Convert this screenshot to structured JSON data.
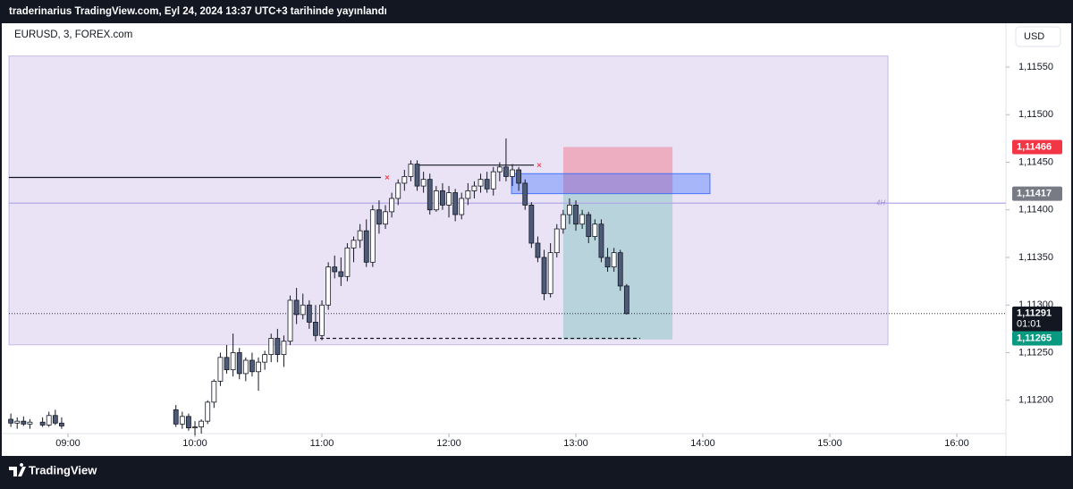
{
  "header": {
    "text": "traderinarius TradingView.com, Eyl 24, 2024 13:37 UTC+3 tarihinde yayınlandı"
  },
  "footer": {
    "brand": "TradingView"
  },
  "chart_data": {
    "type": "candlestick",
    "symbol": "EURUSD, 3, FOREX.com",
    "currency": "USD",
    "up_color": "#ffffff",
    "down_color": "#4e5b78",
    "outline_color": "#131722",
    "xlim": [
      8.535,
      16.387
    ],
    "ylim": [
      1.11165,
      1.11596
    ],
    "xticks": [
      {
        "value": 9,
        "label": "09:00"
      },
      {
        "value": 10,
        "label": "10:00"
      },
      {
        "value": 11,
        "label": "11:00"
      },
      {
        "value": 12,
        "label": "12:00"
      },
      {
        "value": 13,
        "label": "13:00"
      },
      {
        "value": 14,
        "label": "14:00"
      },
      {
        "value": 15,
        "label": "15:00"
      },
      {
        "value": 16,
        "label": "16:00"
      }
    ],
    "yticks": [
      {
        "value": 1.1155,
        "label": "1,11550"
      },
      {
        "value": 1.115,
        "label": "1,11500"
      },
      {
        "value": 1.1145,
        "label": "1,11450"
      },
      {
        "value": 1.114,
        "label": "1,11400"
      },
      {
        "value": 1.1135,
        "label": "1,11350"
      },
      {
        "value": 1.113,
        "label": "1,11300"
      },
      {
        "value": 1.1125,
        "label": "1,11250"
      },
      {
        "value": 1.112,
        "label": "1,11200"
      }
    ],
    "x": [
      8.55,
      8.6,
      8.65,
      8.7,
      8.8,
      8.85,
      8.9,
      8.95,
      9.85,
      9.9,
      9.95,
      10.0,
      10.05,
      10.1,
      10.15,
      10.2,
      10.25,
      10.3,
      10.35,
      10.4,
      10.45,
      10.5,
      10.55,
      10.6,
      10.65,
      10.7,
      10.75,
      10.8,
      10.85,
      10.9,
      10.95,
      11.0,
      11.05,
      11.1,
      11.15,
      11.2,
      11.25,
      11.3,
      11.35,
      11.4,
      11.45,
      11.5,
      11.55,
      11.6,
      11.65,
      11.7,
      11.75,
      11.8,
      11.85,
      11.9,
      11.95,
      12.0,
      12.05,
      12.1,
      12.15,
      12.2,
      12.25,
      12.3,
      12.35,
      12.4,
      12.45,
      12.5,
      12.55,
      12.6,
      12.65,
      12.7,
      12.75,
      12.8,
      12.85,
      12.9,
      12.95,
      13.0,
      13.05,
      13.1,
      13.15,
      13.2,
      13.25,
      13.3,
      13.35,
      13.4
    ],
    "open": [
      1.1118,
      1.11176,
      1.11178,
      1.11175,
      1.11177,
      1.11174,
      1.11184,
      1.11176,
      1.1119,
      1.11175,
      1.11183,
      1.11171,
      1.11172,
      1.11178,
      1.11198,
      1.1122,
      1.11245,
      1.11232,
      1.1125,
      1.11228,
      1.11242,
      1.1123,
      1.1124,
      1.11248,
      1.11265,
      1.11248,
      1.11262,
      1.11305,
      1.1129,
      1.113,
      1.11282,
      1.11268,
      1.113,
      1.1134,
      1.11335,
      1.1133,
      1.1136,
      1.11368,
      1.11378,
      1.11345,
      1.114,
      1.11385,
      1.11398,
      1.11412,
      1.11428,
      1.11435,
      1.11448,
      1.11425,
      1.11432,
      1.114,
      1.1142,
      1.11405,
      1.11418,
      1.11395,
      1.11412,
      1.1142,
      1.11425,
      1.11432,
      1.11422,
      1.1144,
      1.11445,
      1.11435,
      1.11442,
      1.11428,
      1.11405,
      1.11365,
      1.1135,
      1.11312,
      1.11355,
      1.1138,
      1.11395,
      1.11405,
      1.11385,
      1.11395,
      1.11372,
      1.11385,
      1.1135,
      1.1134,
      1.11355,
      1.1132
    ],
    "high": [
      1.11186,
      1.11182,
      1.11183,
      1.1118,
      1.11182,
      1.11188,
      1.1119,
      1.11182,
      1.11195,
      1.11188,
      1.11186,
      1.11178,
      1.1118,
      1.112,
      1.11222,
      1.1125,
      1.11258,
      1.1127,
      1.11255,
      1.11245,
      1.1125,
      1.11245,
      1.11252,
      1.1127,
      1.11275,
      1.11268,
      1.1131,
      1.11318,
      1.11312,
      1.11305,
      1.113,
      1.11305,
      1.11345,
      1.11352,
      1.1135,
      1.11365,
      1.11372,
      1.11385,
      1.1139,
      1.11405,
      1.1141,
      1.11405,
      1.11418,
      1.11432,
      1.11442,
      1.11452,
      1.11452,
      1.1144,
      1.11438,
      1.11425,
      1.11428,
      1.11425,
      1.11422,
      1.11418,
      1.11428,
      1.1143,
      1.11438,
      1.1144,
      1.11445,
      1.1145,
      1.11475,
      1.11448,
      1.11445,
      1.11432,
      1.11408,
      1.11372,
      1.11358,
      1.11365,
      1.11385,
      1.114,
      1.11412,
      1.1141,
      1.114,
      1.11398,
      1.1139,
      1.1139,
      1.1136,
      1.1136,
      1.11358,
      1.11322
    ],
    "low": [
      1.11172,
      1.1117,
      1.11173,
      1.1117,
      1.11172,
      1.11172,
      1.11174,
      1.1117,
      1.11172,
      1.1117,
      1.11168,
      1.11163,
      1.11165,
      1.11175,
      1.11192,
      1.11215,
      1.11228,
      1.11225,
      1.11222,
      1.1122,
      1.11225,
      1.1121,
      1.11232,
      1.1124,
      1.1124,
      1.11235,
      1.11258,
      1.1128,
      1.11285,
      1.11275,
      1.11262,
      1.11263,
      1.11295,
      1.11328,
      1.1132,
      1.11325,
      1.11345,
      1.1136,
      1.1134,
      1.1134,
      1.11375,
      1.1138,
      1.11392,
      1.11405,
      1.1142,
      1.1143,
      1.1142,
      1.11418,
      1.11395,
      1.11398,
      1.114,
      1.11392,
      1.11388,
      1.1139,
      1.11405,
      1.11412,
      1.11418,
      1.11418,
      1.11415,
      1.1143,
      1.1143,
      1.11425,
      1.1142,
      1.114,
      1.1136,
      1.11345,
      1.11305,
      1.11308,
      1.1135,
      1.11375,
      1.11385,
      1.11378,
      1.1138,
      1.11365,
      1.11368,
      1.11345,
      1.11335,
      1.11335,
      1.11315,
      1.1129
    ],
    "close": [
      1.11176,
      1.11178,
      1.11175,
      1.11177,
      1.11174,
      1.11184,
      1.11176,
      1.11173,
      1.11175,
      1.11183,
      1.11171,
      1.11172,
      1.11178,
      1.11198,
      1.1122,
      1.11245,
      1.11232,
      1.1125,
      1.11228,
      1.11242,
      1.1123,
      1.1124,
      1.11248,
      1.11265,
      1.11248,
      1.11262,
      1.11305,
      1.1129,
      1.113,
      1.11282,
      1.11268,
      1.113,
      1.1134,
      1.11335,
      1.1133,
      1.1136,
      1.11368,
      1.11378,
      1.11345,
      1.114,
      1.11385,
      1.11398,
      1.11412,
      1.11428,
      1.11435,
      1.11448,
      1.11425,
      1.11432,
      1.114,
      1.1142,
      1.11405,
      1.11418,
      1.11395,
      1.11412,
      1.1142,
      1.11425,
      1.11432,
      1.11422,
      1.1144,
      1.11445,
      1.11435,
      1.11442,
      1.11428,
      1.11405,
      1.11365,
      1.1135,
      1.11312,
      1.11355,
      1.1138,
      1.11395,
      1.11405,
      1.11385,
      1.11395,
      1.11372,
      1.11385,
      1.1135,
      1.1134,
      1.11355,
      1.1132,
      1.11291
    ],
    "zones": [
      {
        "x0": 8.535,
        "x1": 15.458,
        "y0": 1.112582,
        "y1": 1.115616,
        "color": "rgba(149,117,205,0.2)",
        "stroke": "rgba(149,117,205,0.45)"
      },
      {
        "x0": 12.901,
        "x1": 13.761,
        "y0": 1.11417,
        "y1": 1.11466,
        "color": "rgba(242,54,69,0.3)",
        "stroke": "none"
      },
      {
        "x0": 12.901,
        "x1": 13.761,
        "y0": 1.112638,
        "y1": 1.11417,
        "color": "rgba(8,153,129,0.22)",
        "stroke": "none"
      },
      {
        "x0": 12.493,
        "x1": 14.056,
        "y0": 1.11417,
        "y1": 1.11438,
        "color": "rgba(41,98,255,0.35)",
        "stroke": "rgba(41,98,255,0.8)"
      }
    ],
    "lines": [
      {
        "y": 1.11434,
        "x0": 8.535,
        "x1": 11.465,
        "color": "#131722",
        "dash": "none"
      },
      {
        "y": 1.11447,
        "x0": 11.746,
        "x1": 12.669,
        "color": "#131722",
        "dash": "none"
      },
      {
        "y": 1.11265,
        "x0": 10.986,
        "x1": 13.507,
        "color": "#131722",
        "dash": "4 3"
      },
      {
        "y": 1.11407,
        "x0": 8.535,
        "x1": 16.387,
        "color": "#b2a8e8",
        "dash": "none",
        "label": "4H"
      }
    ],
    "price_labels": [
      {
        "value": 1.11466,
        "label": "1,11466",
        "color": "#f23645"
      },
      {
        "value": 1.11417,
        "label": "1,11417",
        "color": "#787b86"
      },
      {
        "value": 1.11291,
        "label": "1,11291",
        "sub": "01:01",
        "color": "#131722"
      },
      {
        "value": 1.11265,
        "label": "1,11265",
        "color": "#089981"
      }
    ]
  }
}
